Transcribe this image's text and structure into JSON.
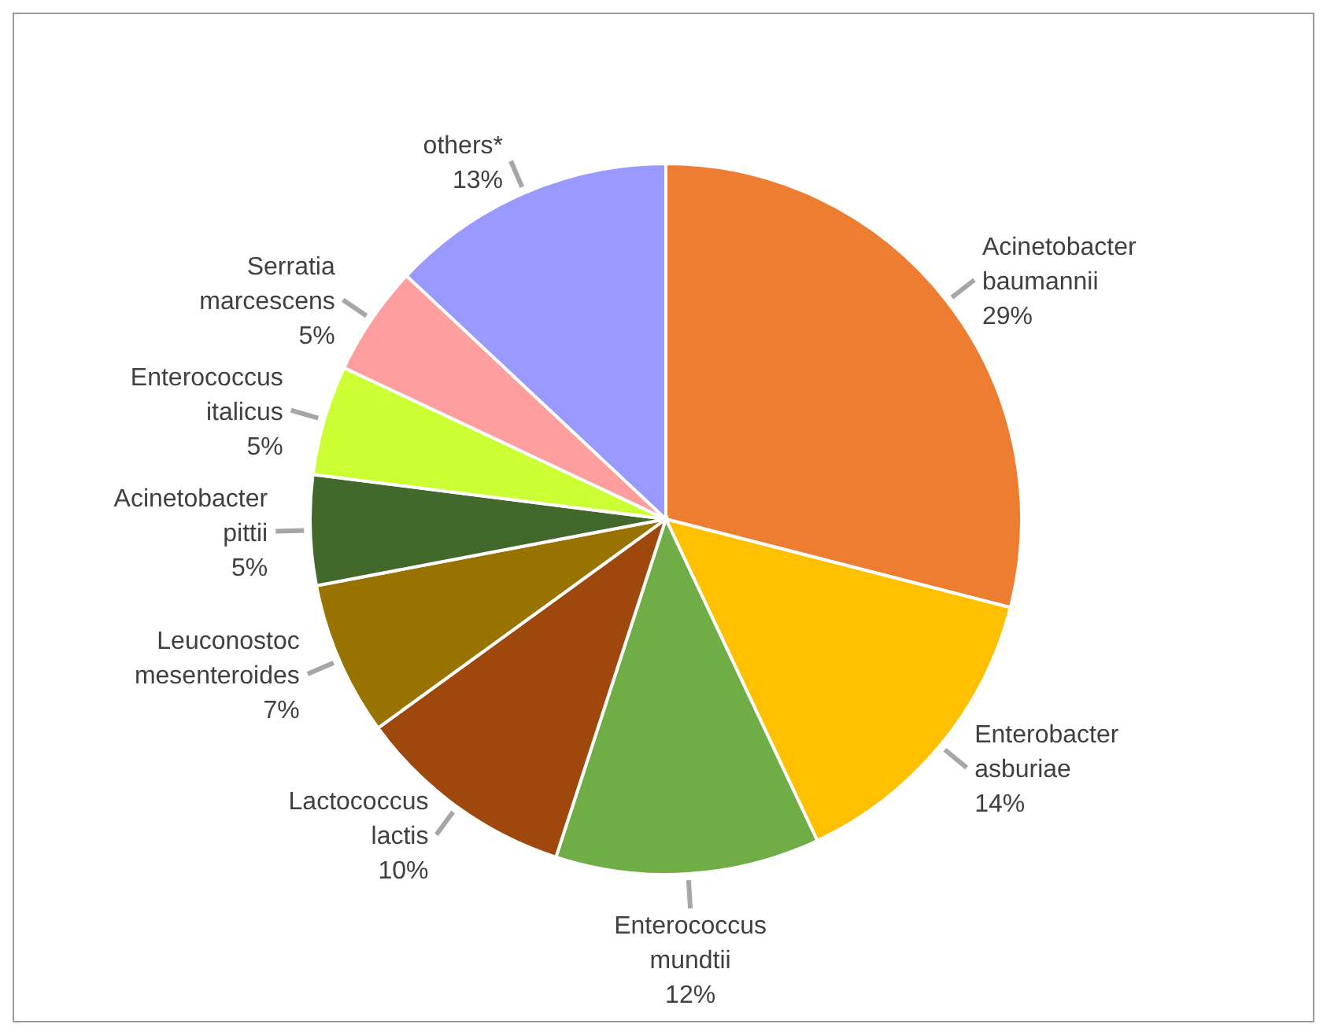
{
  "chart_data": {
    "type": "pie",
    "categories": [
      "Acinetobacter baumannii",
      "Enterobacter asburiae",
      "Enterococcus mundtii",
      "Lactococcus lactis",
      "Leuconostoc mesenteroides",
      "Acinetobacter pittii",
      "Enterococcus italicus",
      "Serratia marcescens",
      "others*"
    ],
    "values": [
      29,
      14,
      12,
      10,
      7,
      5,
      5,
      5,
      13
    ],
    "colors": [
      "#ed7d31",
      "#ffc000",
      "#70ad47",
      "#9e480e",
      "#997300",
      "#43682b",
      "#ccff33",
      "#ff9e9e",
      "#9999ff"
    ],
    "value_labels": [
      "29%",
      "14%",
      "12%",
      "10%",
      "7%",
      "5%",
      "5%",
      "5%",
      "13%"
    ]
  }
}
